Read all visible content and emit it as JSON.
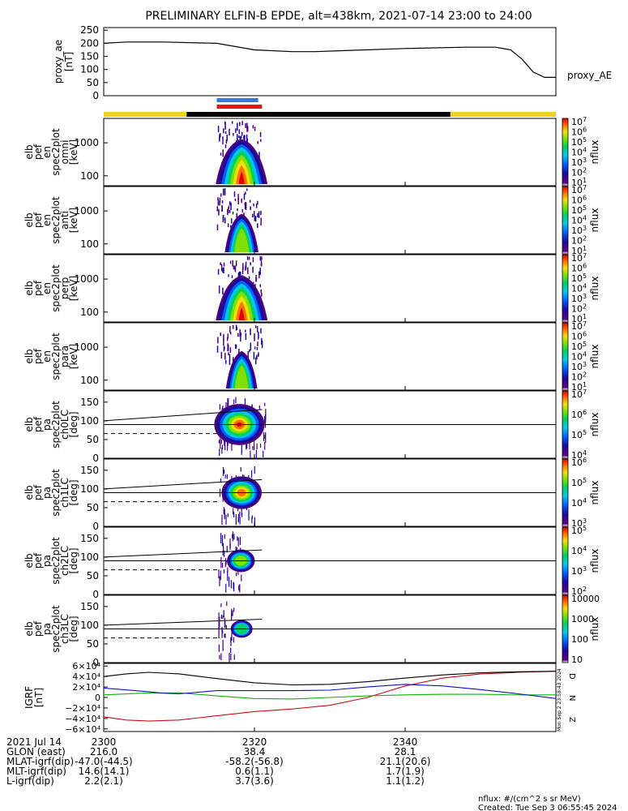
{
  "title": "PRELIMINARY ELFIN-B EPDE, alt=438km, 2021-07-14 23:00 to 24:00",
  "colors": {
    "blue_bar": "#2a7de1",
    "red_bar": "#e81010",
    "black_bar": "#000000",
    "yellow_bar": "#f5d020",
    "bx": "#1010c8",
    "by": "#10b010",
    "bz": "#c81010",
    "btot": "#000000"
  },
  "chart_data": [
    {
      "type": "line",
      "id": "proxy_ae",
      "ylabel": [
        "proxy_ae",
        "[nT]"
      ],
      "legend": "proxy_AE",
      "ylim": [
        0,
        260
      ],
      "yticks": [
        "250",
        "200",
        "150",
        "100",
        "50",
        "0"
      ],
      "ytick_values": [
        250,
        200,
        150,
        100,
        50,
        0
      ],
      "x": [
        0,
        3,
        8,
        15,
        20,
        25,
        28,
        32,
        40,
        48,
        52,
        54,
        55.5,
        57,
        58.5,
        60
      ],
      "y": [
        200,
        205,
        205,
        200,
        175,
        168,
        168,
        172,
        180,
        185,
        185,
        175,
        140,
        90,
        70,
        70
      ]
    },
    {
      "type": "bar",
      "id": "orbit_bars",
      "segments": [
        {
          "color": "yellow",
          "x": [
            0,
            11
          ]
        },
        {
          "color": "black",
          "x": [
            11,
            46
          ]
        },
        {
          "color": "yellow",
          "x": [
            46,
            60
          ]
        }
      ],
      "science_bars": [
        {
          "color": "blue",
          "x": [
            15,
            20.5
          ]
        },
        {
          "color": "red",
          "x": [
            15,
            21
          ]
        }
      ]
    },
    {
      "type": "heatmap",
      "id": "en_omni",
      "ylabel": [
        "elb",
        "pef",
        "en",
        "spec2plot",
        "omni",
        "[keV]"
      ],
      "yticks": [
        "1000",
        "100"
      ],
      "colorbar_ticks": [
        "10^7",
        "10^6",
        "10^5",
        "10^4",
        "10^3",
        "10^2",
        "10^1"
      ],
      "colorbar_label": "nflux",
      "peak_time": 18.3,
      "intensity": 1.0
    },
    {
      "type": "heatmap",
      "id": "en_anti",
      "ylabel": [
        "elb",
        "pef",
        "en",
        "spec2plot",
        "anti",
        "[keV]"
      ],
      "yticks": [
        "1000",
        "100"
      ],
      "colorbar_ticks": [
        "10^7",
        "10^6",
        "10^5",
        "10^4",
        "10^3",
        "10^2",
        "10^1"
      ],
      "colorbar_label": "nflux",
      "peak_time": 18.3,
      "intensity": 0.6
    },
    {
      "type": "heatmap",
      "id": "en_perp",
      "ylabel": [
        "elb",
        "pef",
        "en",
        "spec2plot",
        "perp",
        "[keV]"
      ],
      "yticks": [
        "1000",
        "100"
      ],
      "colorbar_ticks": [
        "10^7",
        "10^6",
        "10^5",
        "10^4",
        "10^3",
        "10^2",
        "10^1"
      ],
      "colorbar_label": "nflux",
      "peak_time": 18.3,
      "intensity": 1.0
    },
    {
      "type": "heatmap",
      "id": "en_para",
      "ylabel": [
        "elb",
        "pef",
        "en",
        "spec2plot",
        "para",
        "[keV]"
      ],
      "yticks": [
        "1000",
        "100"
      ],
      "colorbar_ticks": [
        "10^7",
        "10^6",
        "10^5",
        "10^4",
        "10^3",
        "10^2",
        "10^1"
      ],
      "colorbar_label": "nflux",
      "peak_time": 18.3,
      "intensity": 0.55
    },
    {
      "type": "heatmap",
      "id": "pa_ch0",
      "ylabel": [
        "elb",
        "pef",
        "pa",
        "spec2plot",
        "ch0LC",
        "[deg]"
      ],
      "yticks": [
        "150",
        "100",
        "50",
        "0"
      ],
      "ylim": [
        0,
        180
      ],
      "colorbar_ticks": [
        "10^7",
        "10^6",
        "10^5",
        "10^4"
      ],
      "colorbar_label": "nflux",
      "peak_time": 18.0,
      "width": 1.0
    },
    {
      "type": "heatmap",
      "id": "pa_ch1",
      "ylabel": [
        "elb",
        "pef",
        "pa",
        "spec2plot",
        "ch1LC",
        "[deg]"
      ],
      "yticks": [
        "150",
        "100",
        "50",
        "0"
      ],
      "ylim": [
        0,
        180
      ],
      "colorbar_ticks": [
        "10^6",
        "10^5",
        "10^4",
        "10^3"
      ],
      "colorbar_label": "nflux",
      "peak_time": 18.3,
      "width": 0.75
    },
    {
      "type": "heatmap",
      "id": "pa_ch2",
      "ylabel": [
        "elb",
        "pef",
        "pa",
        "spec2plot",
        "ch2LC",
        "[deg]"
      ],
      "yticks": [
        "150",
        "100",
        "50",
        "0"
      ],
      "ylim": [
        0,
        180
      ],
      "colorbar_ticks": [
        "10^5",
        "10^4",
        "10^3",
        "10^2"
      ],
      "colorbar_label": "nflux",
      "peak_time": 18.2,
      "width": 0.45
    },
    {
      "type": "heatmap",
      "id": "pa_ch3",
      "ylabel": [
        "elb",
        "pef",
        "pa",
        "spec2plot",
        "ch3LC",
        "[deg]"
      ],
      "yticks": [
        "150",
        "100",
        "50",
        "0"
      ],
      "ylim": [
        0,
        180
      ],
      "colorbar_ticks": [
        "10000",
        "1000",
        "100",
        "10"
      ],
      "colorbar_label": "nflux",
      "peak_time": 18.3,
      "width": 0.3
    },
    {
      "type": "line",
      "id": "b_igrf",
      "ylabel": [
        "IGRF",
        "[nT]"
      ],
      "yticks": [
        "6×10⁴",
        "4×10⁴",
        "2×10⁴",
        "0",
        "−2×10⁴",
        "−4×10⁴",
        "−6×10⁴"
      ],
      "ytick_values": [
        60000,
        40000,
        20000,
        0,
        -20000,
        -40000,
        -60000
      ],
      "ylim": [
        -65000,
        65000
      ],
      "series": [
        {
          "name": "D",
          "color": "bz",
          "x": [
            0,
            3,
            6,
            10,
            15,
            20,
            25,
            30,
            35,
            40,
            45,
            50,
            55,
            60
          ],
          "y": [
            -37000,
            -43000,
            -45000,
            -43000,
            -35000,
            -27000,
            -22000,
            -15000,
            0,
            22000,
            37000,
            45000,
            48000,
            50000
          ]
        },
        {
          "name": "N",
          "color": "by",
          "x": [
            0,
            5,
            10,
            15,
            20,
            25,
            30,
            35,
            40,
            45,
            50,
            55,
            60
          ],
          "y": [
            5000,
            8000,
            9000,
            3000,
            -2000,
            -3000,
            0,
            3000,
            5000,
            6000,
            6000,
            5000,
            5000
          ]
        },
        {
          "name": "Z",
          "color": "bx",
          "x": [
            0,
            5,
            8,
            10,
            15,
            20,
            25,
            30,
            35,
            40,
            45,
            50,
            55,
            60
          ],
          "y": [
            18000,
            12000,
            8000,
            7000,
            13000,
            13000,
            13000,
            14000,
            20000,
            25000,
            22000,
            15000,
            7000,
            -2000
          ]
        },
        {
          "name": "total",
          "color": "btot",
          "x": [
            0,
            3,
            6,
            10,
            15,
            20,
            25,
            30,
            35,
            40,
            45,
            50,
            55,
            60
          ],
          "y": [
            40000,
            45000,
            48000,
            45000,
            36000,
            28000,
            24000,
            25000,
            30000,
            37000,
            43000,
            47000,
            49000,
            50000
          ]
        }
      ],
      "legend_labels": [
        "D",
        "N",
        "Z"
      ],
      "stamp": "Mon Sep 2 23:58:43 2024"
    }
  ],
  "x_axis": {
    "ticks": [
      "2300",
      "2320",
      "2340"
    ],
    "tick_values": [
      0,
      20,
      40
    ],
    "rows": [
      {
        "label": "2021 Jul 14",
        "values": [
          "2300",
          "2320",
          "2340"
        ]
      },
      {
        "label": "GLON (east)",
        "values": [
          "216.0",
          "38.4",
          "28.1"
        ]
      },
      {
        "label": "MLAT-igrf(dip)",
        "values": [
          "-47.0(-44.5)",
          "-58.2(-56.8)",
          "21.1(20.6)"
        ]
      },
      {
        "label": "MLT-igrf(dip)",
        "values": [
          "14.6(14.1)",
          "0.6(1.1)",
          "1.7(1.9)"
        ]
      },
      {
        "label": "L-igrf(dip)",
        "values": [
          "2.2(2.1)",
          "3.7(3.6)",
          "1.1(1.2)"
        ]
      }
    ]
  },
  "footer": {
    "units": "nflux: #/(cm^2 s sr MeV)",
    "created": "Created: Tue Sep  3 06:55:45 2024"
  }
}
